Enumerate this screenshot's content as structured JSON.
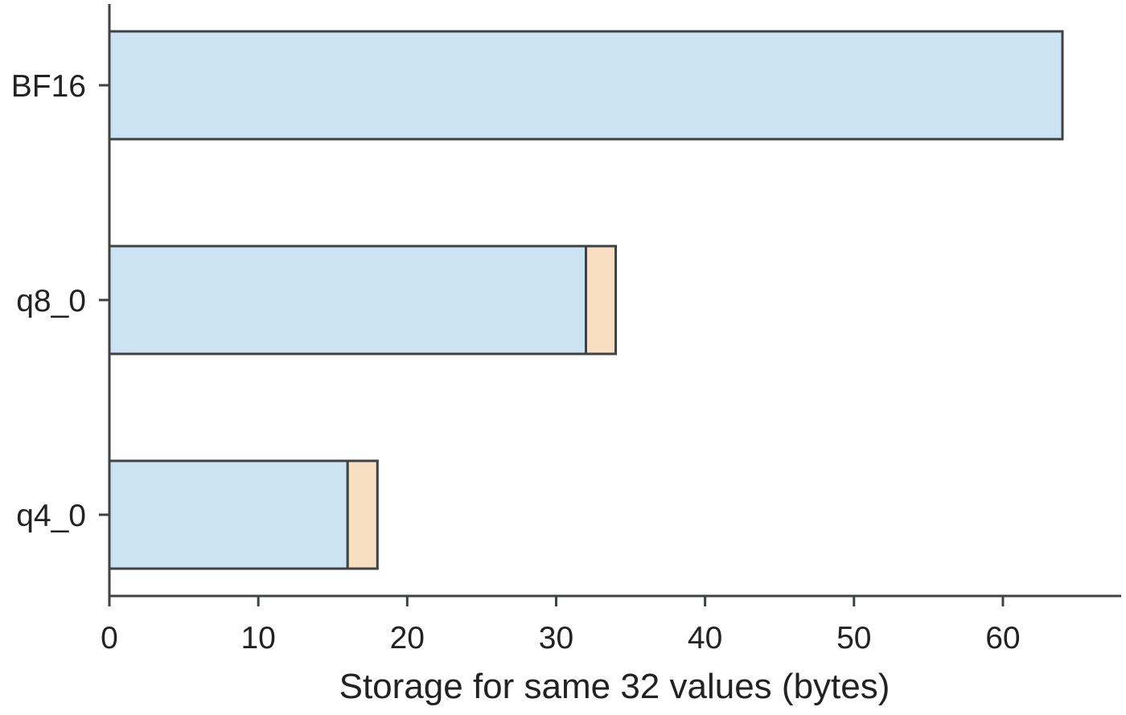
{
  "chart_data": {
    "type": "bar",
    "orientation": "horizontal",
    "stacked": true,
    "categories": [
      "BF16",
      "q8_0",
      "q4_0"
    ],
    "series": [
      {
        "values": [
          64,
          32,
          16
        ],
        "color": "#cce3f4"
      },
      {
        "values": [
          0,
          2,
          2
        ],
        "color": "#f9dfc1"
      }
    ],
    "title": "",
    "xlabel": "Storage for same 32 values (bytes)",
    "ylabel": "",
    "xlim": [
      0,
      68
    ],
    "xticks": [
      0,
      10,
      20,
      30,
      40,
      50,
      60
    ],
    "grid": false,
    "legend": "none",
    "edge_color": "#3f4245"
  }
}
